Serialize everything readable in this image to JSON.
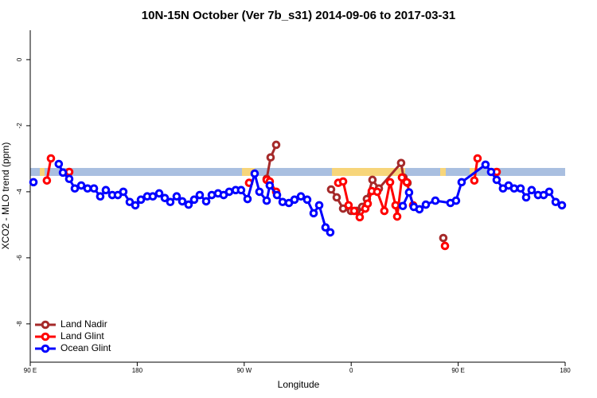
{
  "chart_data": {
    "type": "line",
    "title": "10N-15N October (Ver 7b_s31)   2014-09-06 to 2017-03-31",
    "x_label": "Longitude",
    "y_label": "XCO2 - MLO trend (ppm)",
    "xlim": [
      90,
      540
    ],
    "ylim": [
      -9.16,
      0.89
    ],
    "xticks": [
      {
        "value": 90,
        "label": "90 E"
      },
      180,
      {
        "value": 270,
        "label": "90 W"
      },
      {
        "value": 360,
        "label": "0"
      },
      {
        "value": 450,
        "label": "90 E"
      },
      {
        "value": 540,
        "label": "180"
      }
    ],
    "yticks": [
      0,
      -2,
      -4,
      -6,
      -8
    ],
    "legend": "bottom-left",
    "series": [
      {
        "name": "Land Nadir",
        "color": "#a52a2a",
        "x": [
          288.9,
          292.2,
          296.9,
          null,
          343.1,
          347.8,
          353.2,
          359.8,
          364.5,
          369.2,
          373.2,
          377.9,
          383.3,
          402,
          404,
          407.4,
          null,
          437.5
        ],
        "values": [
          -3.61,
          -2.96,
          -2.58,
          null,
          -3.93,
          -4.17,
          -4.51,
          -4.58,
          -4.58,
          -4.46,
          -4.22,
          -3.64,
          -3.9,
          -3.13,
          -3.57,
          -3.73,
          null,
          -5.4
        ]
      },
      {
        "name": "Land Glint",
        "color": "#ff0000",
        "x": [
          104,
          107.4,
          null,
          122.8,
          null,
          274.1,
          null,
          288.9,
          291.5,
          296.9,
          null,
          349.1,
          353.2,
          357.8,
          362.5,
          367.2,
          371.9,
          373.9,
          377.3,
          381.9,
          387.9,
          392.7,
          397.3,
          398.7,
          402.7,
          406.7,
          412.1,
          null,
          438.9,
          null,
          463.6,
          466.3,
          null,
          482.4
        ],
        "values": [
          -3.66,
          -2.99,
          null,
          -3.4,
          null,
          -3.73,
          null,
          -3.64,
          -3.69,
          -4.0,
          null,
          -3.73,
          -3.69,
          -4.41,
          -4.58,
          -4.77,
          -4.51,
          -4.36,
          -3.98,
          -4.0,
          -4.58,
          -3.71,
          -4.41,
          -4.75,
          -3.57,
          -3.71,
          -4.41,
          null,
          -5.64,
          null,
          -3.66,
          -2.99,
          null,
          -3.4
        ]
      },
      {
        "name": "Ocean Glint",
        "color": "#0000ff",
        "x": [
          92.7,
          null,
          114,
          117.5,
          122.8,
          127.5,
          132.9,
          138.2,
          143.6,
          148.9,
          153.6,
          159,
          163.7,
          168.3,
          173.7,
          178.4,
          183.1,
          188.4,
          193.1,
          198.5,
          203.2,
          207.8,
          213.2,
          217.9,
          223.2,
          227.9,
          232.6,
          238,
          242.7,
          248,
          252.7,
          257.4,
          262.8,
          267.4,
          272.8,
          278.8,
          282.8,
          288.9,
          291.5,
          297.6,
          302.3,
          307.6,
          312.3,
          317.7,
          323,
          328.4,
          333.1,
          338.4,
          342.4,
          null,
          403.4,
          408.7,
          412.7,
          417.4,
          422.8,
          430.8,
          443.5,
          448.2,
          452.9,
          473,
          477.7,
          482.4,
          487.7,
          492.4,
          497.1,
          502.5,
          507.2,
          511.8,
          517.2,
          521.9,
          526.6,
          532,
          537.3
        ],
        "values": [
          -3.71,
          null,
          -3.16,
          -3.42,
          -3.61,
          -3.9,
          -3.81,
          -3.9,
          -3.9,
          -4.14,
          -3.95,
          -4.1,
          -4.1,
          -4.0,
          -4.31,
          -4.41,
          -4.24,
          -4.14,
          -4.14,
          -4.05,
          -4.19,
          -4.31,
          -4.14,
          -4.29,
          -4.39,
          -4.24,
          -4.1,
          -4.29,
          -4.1,
          -4.05,
          -4.1,
          -4.0,
          -3.95,
          -3.95,
          -4.22,
          -3.45,
          -4.0,
          -4.27,
          -3.81,
          -4.1,
          -4.31,
          -4.34,
          -4.24,
          -4.14,
          -4.24,
          -4.65,
          -4.41,
          -5.08,
          -5.23,
          null,
          -4.43,
          -4.02,
          -4.46,
          -4.53,
          -4.39,
          -4.27,
          -4.34,
          -4.27,
          -3.71,
          -3.18,
          -3.4,
          -3.64,
          -3.9,
          -3.81,
          -3.9,
          -3.9,
          -4.17,
          -3.95,
          -4.1,
          -4.1,
          -4.0,
          -4.31,
          -4.41
        ]
      }
    ]
  }
}
